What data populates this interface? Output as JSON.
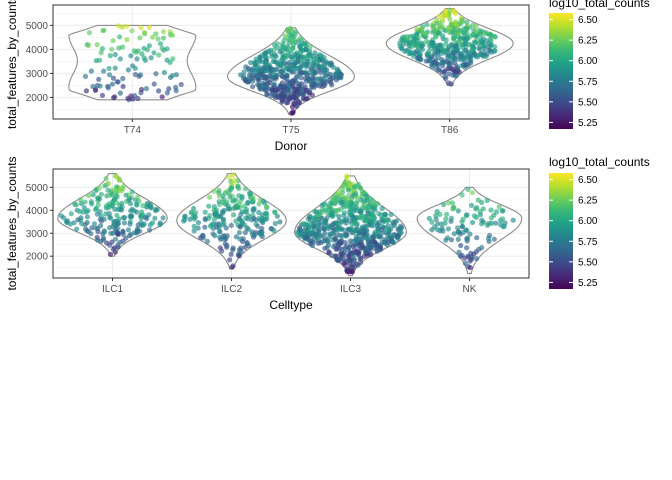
{
  "chart_data": [
    {
      "type": "violin",
      "xlabel": "Donor",
      "ylabel": "total_features_by_counts",
      "categories": [
        "T74",
        "T75",
        "T86"
      ],
      "yticks": [
        2000,
        3000,
        4000,
        5000
      ],
      "ylim": [
        1100,
        5850
      ],
      "grid": true,
      "color_by": "log10_total_counts",
      "colorbar": {
        "title": "log10_total_counts",
        "ticks": [
          5.25,
          5.5,
          5.75,
          6.0,
          6.25,
          6.5
        ],
        "tick_labels": [
          "5.25",
          "5.50",
          "5.75",
          "6.00",
          "6.25",
          "6.50"
        ],
        "range": [
          5.17,
          6.58
        ],
        "palette": "viridis",
        "position": "right"
      },
      "groups": [
        {
          "category": "T74",
          "n_points": 110,
          "ymin": 1900,
          "ymax": 5000,
          "peak": 3700,
          "point_spread": 0.78,
          "dist": "unif",
          "skew": 1.0,
          "halfwidth": 0.4,
          "cmin": 5.3,
          "cmax": 6.5
        },
        {
          "category": "T75",
          "n_points": 520,
          "ymin": 1300,
          "ymax": 4900,
          "peak": 2850,
          "point_spread": 0.8,
          "dist": "bell",
          "skew": 1.0,
          "halfwidth": 0.4,
          "cmin": 5.22,
          "cmax": 6.3
        },
        {
          "category": "T86",
          "n_points": 430,
          "ymin": 2500,
          "ymax": 5700,
          "peak": 4250,
          "point_spread": 0.8,
          "dist": "bell",
          "skew": 1.0,
          "halfwidth": 0.4,
          "cmin": 5.3,
          "cmax": 6.55
        }
      ]
    },
    {
      "type": "violin",
      "xlabel": "Celltype",
      "ylabel": "total_features_by_counts",
      "categories": [
        "ILC1",
        "ILC2",
        "ILC3",
        "NK"
      ],
      "yticks": [
        2000,
        3000,
        4000,
        5000
      ],
      "ylim": [
        1050,
        5800
      ],
      "grid": true,
      "color_by": "log10_total_counts",
      "colorbar": {
        "title": "log10_total_counts",
        "ticks": [
          5.25,
          5.5,
          5.75,
          6.0,
          6.25,
          6.5
        ],
        "tick_labels": [
          "5.25",
          "5.50",
          "5.75",
          "6.00",
          "6.25",
          "6.50"
        ],
        "range": [
          5.17,
          6.58
        ],
        "palette": "viridis",
        "position": "right"
      },
      "groups": [
        {
          "category": "ILC1",
          "n_points": 220,
          "ymin": 2000,
          "ymax": 5600,
          "peak": 3650,
          "point_spread": 0.95,
          "dist": "bell",
          "skew": 1.0,
          "halfwidth": 0.46,
          "cmin": 5.3,
          "cmax": 6.45
        },
        {
          "category": "ILC2",
          "n_points": 230,
          "ymin": 1450,
          "ymax": 5600,
          "peak": 3550,
          "point_spread": 0.92,
          "dist": "bell",
          "skew": 1.0,
          "halfwidth": 0.46,
          "cmin": 5.25,
          "cmax": 6.45
        },
        {
          "category": "ILC3",
          "n_points": 600,
          "ymin": 1150,
          "ymax": 5500,
          "peak": 3050,
          "point_spread": 0.95,
          "dist": "bell",
          "skew": 1.0,
          "halfwidth": 0.47,
          "cmin": 5.22,
          "cmax": 6.45
        },
        {
          "category": "NK",
          "n_points": 110,
          "ymin": 1250,
          "ymax": 5000,
          "peak": 3650,
          "point_spread": 0.85,
          "dist": "bell",
          "skew": 1.0,
          "halfwidth": 0.44,
          "cmin": 5.3,
          "cmax": 6.35
        }
      ]
    }
  ]
}
